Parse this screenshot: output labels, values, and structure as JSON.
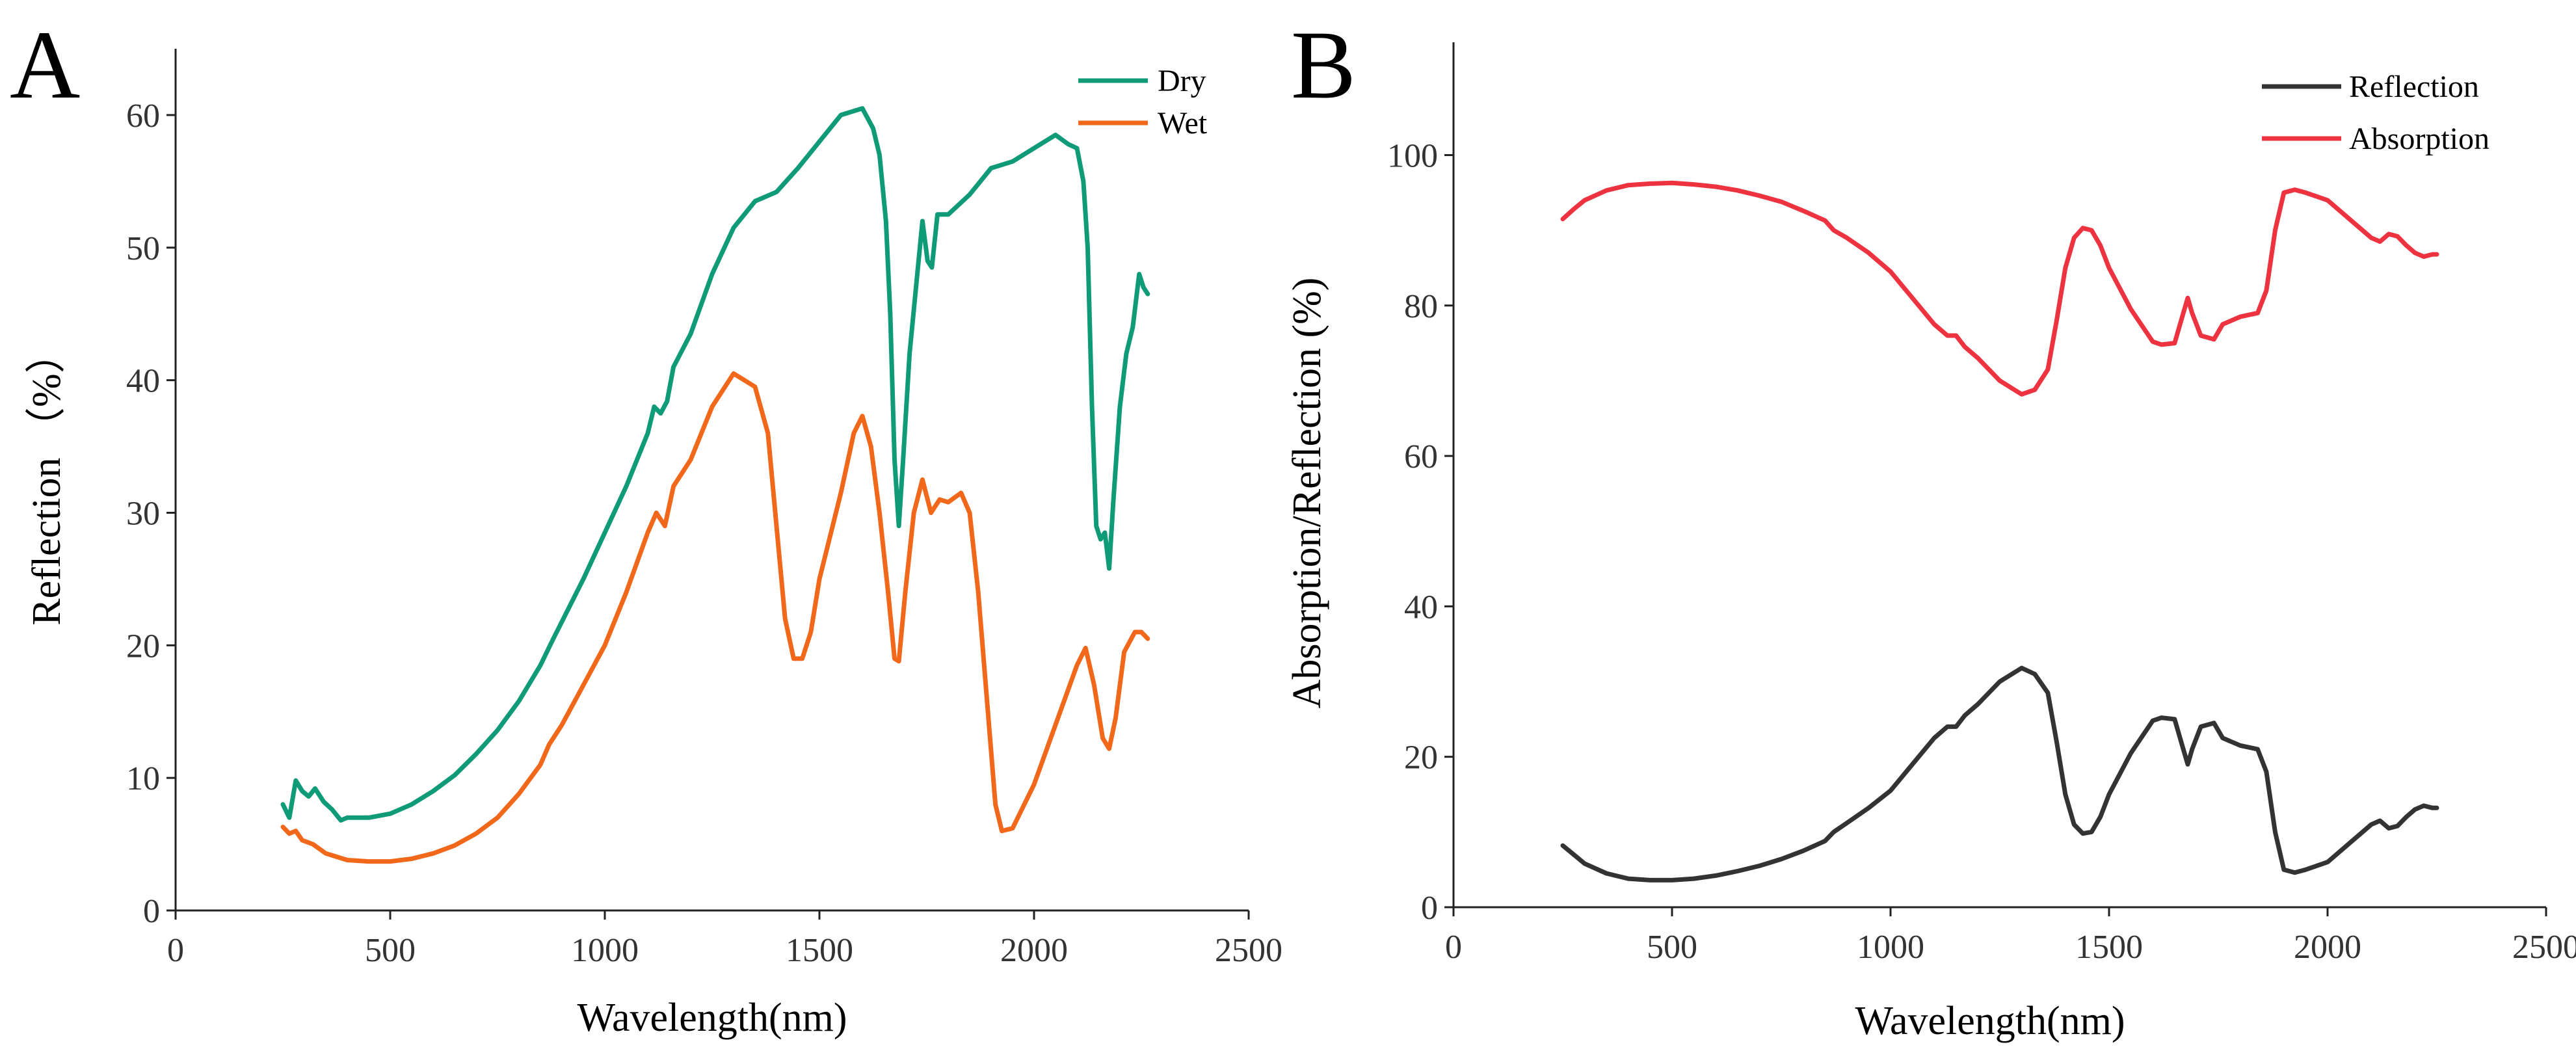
{
  "chart_data": [
    {
      "type": "line",
      "panel_label": "A",
      "xlabel": "Wavelength(nm)",
      "ylabel": "Reflection （%）",
      "xlim": [
        0,
        2500
      ],
      "ylim": [
        0,
        65
      ],
      "xticks": [
        0,
        500,
        1000,
        1500,
        2000,
        2500
      ],
      "yticks": [
        0,
        10,
        20,
        30,
        40,
        50,
        60
      ],
      "legend_position": "top-right",
      "series": [
        {
          "name": "Dry",
          "color": "#0f9a78",
          "points": [
            [
              250,
              8
            ],
            [
              265,
              7
            ],
            [
              280,
              9.8
            ],
            [
              295,
              9
            ],
            [
              310,
              8.6
            ],
            [
              325,
              9.2
            ],
            [
              345,
              8.2
            ],
            [
              365,
              7.6
            ],
            [
              385,
              6.8
            ],
            [
              400,
              7
            ],
            [
              450,
              7
            ],
            [
              500,
              7.3
            ],
            [
              550,
              8
            ],
            [
              600,
              9
            ],
            [
              650,
              10.2
            ],
            [
              700,
              11.8
            ],
            [
              750,
              13.6
            ],
            [
              800,
              15.8
            ],
            [
              850,
              18.5
            ],
            [
              880,
              20.5
            ],
            [
              950,
              25
            ],
            [
              1000,
              28.5
            ],
            [
              1050,
              32
            ],
            [
              1100,
              36
            ],
            [
              1115,
              38
            ],
            [
              1130,
              37.5
            ],
            [
              1145,
              38.4
            ],
            [
              1160,
              41
            ],
            [
              1200,
              43.5
            ],
            [
              1250,
              48
            ],
            [
              1300,
              51.5
            ],
            [
              1350,
              53.5
            ],
            [
              1400,
              54.2
            ],
            [
              1450,
              56
            ],
            [
              1500,
              58
            ],
            [
              1550,
              60
            ],
            [
              1600,
              60.5
            ],
            [
              1625,
              59
            ],
            [
              1640,
              57
            ],
            [
              1655,
              52
            ],
            [
              1665,
              45
            ],
            [
              1675,
              34
            ],
            [
              1685,
              29
            ],
            [
              1695,
              34
            ],
            [
              1710,
              42
            ],
            [
              1725,
              47
            ],
            [
              1740,
              52
            ],
            [
              1752,
              49
            ],
            [
              1762,
              48.5
            ],
            [
              1775,
              52.5
            ],
            [
              1800,
              52.5
            ],
            [
              1850,
              54
            ],
            [
              1900,
              56
            ],
            [
              1950,
              56.5
            ],
            [
              2000,
              57.5
            ],
            [
              2050,
              58.5
            ],
            [
              2080,
              57.8
            ],
            [
              2100,
              57.5
            ],
            [
              2115,
              55
            ],
            [
              2125,
              50
            ],
            [
              2135,
              38
            ],
            [
              2145,
              29
            ],
            [
              2155,
              28
            ],
            [
              2165,
              28.5
            ],
            [
              2175,
              25.8
            ],
            [
              2185,
              31
            ],
            [
              2200,
              38
            ],
            [
              2215,
              42
            ],
            [
              2230,
              44
            ],
            [
              2245,
              48
            ],
            [
              2255,
              47
            ],
            [
              2265,
              46.5
            ]
          ]
        },
        {
          "name": "Wet",
          "color": "#f2681b",
          "points": [
            [
              250,
              6.3
            ],
            [
              265,
              5.8
            ],
            [
              280,
              6
            ],
            [
              295,
              5.3
            ],
            [
              320,
              5
            ],
            [
              350,
              4.3
            ],
            [
              400,
              3.8
            ],
            [
              450,
              3.7
            ],
            [
              500,
              3.7
            ],
            [
              550,
              3.9
            ],
            [
              600,
              4.3
            ],
            [
              650,
              4.9
            ],
            [
              700,
              5.8
            ],
            [
              750,
              7
            ],
            [
              800,
              8.8
            ],
            [
              850,
              11
            ],
            [
              870,
              12.5
            ],
            [
              900,
              14
            ],
            [
              950,
              17
            ],
            [
              1000,
              20
            ],
            [
              1050,
              24
            ],
            [
              1100,
              28.5
            ],
            [
              1120,
              30
            ],
            [
              1140,
              29
            ],
            [
              1160,
              32
            ],
            [
              1200,
              34
            ],
            [
              1250,
              38
            ],
            [
              1300,
              40.5
            ],
            [
              1350,
              39.5
            ],
            [
              1380,
              36
            ],
            [
              1400,
              29
            ],
            [
              1420,
              22
            ],
            [
              1440,
              19
            ],
            [
              1460,
              19
            ],
            [
              1480,
              21
            ],
            [
              1500,
              25
            ],
            [
              1550,
              31.5
            ],
            [
              1580,
              36
            ],
            [
              1600,
              37.3
            ],
            [
              1620,
              35
            ],
            [
              1640,
              30
            ],
            [
              1660,
              24
            ],
            [
              1675,
              19
            ],
            [
              1685,
              18.8
            ],
            [
              1700,
              24
            ],
            [
              1720,
              30
            ],
            [
              1740,
              32.5
            ],
            [
              1760,
              30
            ],
            [
              1780,
              31
            ],
            [
              1800,
              30.8
            ],
            [
              1830,
              31.5
            ],
            [
              1850,
              30
            ],
            [
              1870,
              24
            ],
            [
              1890,
              16
            ],
            [
              1910,
              8
            ],
            [
              1925,
              6
            ],
            [
              1950,
              6.2
            ],
            [
              2000,
              9.5
            ],
            [
              2050,
              14
            ],
            [
              2100,
              18.5
            ],
            [
              2120,
              19.8
            ],
            [
              2140,
              17
            ],
            [
              2160,
              13
            ],
            [
              2175,
              12.2
            ],
            [
              2190,
              14.5
            ],
            [
              2210,
              19.5
            ],
            [
              2235,
              21
            ],
            [
              2250,
              21
            ],
            [
              2265,
              20.5
            ]
          ]
        }
      ]
    },
    {
      "type": "line",
      "panel_label": "B",
      "xlabel": "Wavelength(nm)",
      "ylabel": "Absorption/Reflection (%)",
      "xlim": [
        0,
        2500
      ],
      "ylim": [
        0,
        115
      ],
      "xticks": [
        0,
        500,
        1000,
        1500,
        2000,
        2500
      ],
      "yticks": [
        0,
        20,
        40,
        60,
        80,
        100
      ],
      "legend_position": "top-right",
      "series": [
        {
          "name": "Reflection",
          "color": "#333333",
          "points": [
            [
              250,
              8.2
            ],
            [
              275,
              7
            ],
            [
              300,
              5.8
            ],
            [
              350,
              4.5
            ],
            [
              400,
              3.8
            ],
            [
              450,
              3.6
            ],
            [
              500,
              3.6
            ],
            [
              550,
              3.8
            ],
            [
              600,
              4.2
            ],
            [
              650,
              4.8
            ],
            [
              700,
              5.5
            ],
            [
              750,
              6.4
            ],
            [
              800,
              7.5
            ],
            [
              850,
              8.8
            ],
            [
              870,
              10
            ],
            [
              900,
              11.2
            ],
            [
              950,
              13.2
            ],
            [
              1000,
              15.5
            ],
            [
              1050,
              19
            ],
            [
              1100,
              22.5
            ],
            [
              1130,
              24
            ],
            [
              1150,
              24
            ],
            [
              1170,
              25.5
            ],
            [
              1200,
              27
            ],
            [
              1250,
              30
            ],
            [
              1300,
              31.8
            ],
            [
              1330,
              31
            ],
            [
              1360,
              28.5
            ],
            [
              1380,
              22
            ],
            [
              1400,
              15
            ],
            [
              1420,
              11
            ],
            [
              1440,
              9.8
            ],
            [
              1460,
              10
            ],
            [
              1480,
              12
            ],
            [
              1500,
              15
            ],
            [
              1550,
              20.5
            ],
            [
              1600,
              24.8
            ],
            [
              1620,
              25.2
            ],
            [
              1650,
              25
            ],
            [
              1670,
              21
            ],
            [
              1680,
              19
            ],
            [
              1690,
              21
            ],
            [
              1710,
              24
            ],
            [
              1740,
              24.5
            ],
            [
              1760,
              22.5
            ],
            [
              1800,
              21.5
            ],
            [
              1840,
              21
            ],
            [
              1860,
              18
            ],
            [
              1880,
              10
            ],
            [
              1900,
              5
            ],
            [
              1925,
              4.6
            ],
            [
              1950,
              5
            ],
            [
              2000,
              6
            ],
            [
              2050,
              8.5
            ],
            [
              2100,
              11
            ],
            [
              2120,
              11.5
            ],
            [
              2140,
              10.5
            ],
            [
              2160,
              10.8
            ],
            [
              2180,
              12
            ],
            [
              2200,
              13
            ],
            [
              2220,
              13.5
            ],
            [
              2240,
              13.2
            ],
            [
              2250,
              13.2
            ]
          ]
        },
        {
          "name": "Absorption",
          "color": "#ee3340",
          "points": [
            [
              250,
              91.5
            ],
            [
              275,
              92.8
            ],
            [
              300,
              94
            ],
            [
              350,
              95.3
            ],
            [
              400,
              96
            ],
            [
              450,
              96.2
            ],
            [
              500,
              96.3
            ],
            [
              550,
              96.1
            ],
            [
              600,
              95.8
            ],
            [
              650,
              95.3
            ],
            [
              700,
              94.6
            ],
            [
              750,
              93.8
            ],
            [
              800,
              92.6
            ],
            [
              850,
              91.3
            ],
            [
              870,
              90
            ],
            [
              900,
              89
            ],
            [
              950,
              87
            ],
            [
              1000,
              84.5
            ],
            [
              1050,
              81
            ],
            [
              1100,
              77.5
            ],
            [
              1130,
              76
            ],
            [
              1150,
              76
            ],
            [
              1170,
              74.5
            ],
            [
              1200,
              73
            ],
            [
              1250,
              70
            ],
            [
              1300,
              68.2
            ],
            [
              1330,
              68.8
            ],
            [
              1360,
              71.5
            ],
            [
              1380,
              78
            ],
            [
              1400,
              85
            ],
            [
              1420,
              89
            ],
            [
              1440,
              90.3
            ],
            [
              1460,
              90
            ],
            [
              1480,
              88
            ],
            [
              1500,
              85
            ],
            [
              1550,
              79.5
            ],
            [
              1600,
              75.2
            ],
            [
              1620,
              74.8
            ],
            [
              1650,
              75
            ],
            [
              1670,
              79
            ],
            [
              1680,
              81
            ],
            [
              1690,
              79
            ],
            [
              1710,
              76
            ],
            [
              1740,
              75.5
            ],
            [
              1760,
              77.5
            ],
            [
              1800,
              78.5
            ],
            [
              1840,
              79
            ],
            [
              1860,
              82
            ],
            [
              1880,
              90
            ],
            [
              1900,
              95
            ],
            [
              1925,
              95.4
            ],
            [
              1950,
              95
            ],
            [
              2000,
              94
            ],
            [
              2050,
              91.5
            ],
            [
              2100,
              89
            ],
            [
              2120,
              88.5
            ],
            [
              2140,
              89.5
            ],
            [
              2160,
              89.2
            ],
            [
              2180,
              88
            ],
            [
              2200,
              87
            ],
            [
              2220,
              86.5
            ],
            [
              2240,
              86.8
            ],
            [
              2250,
              86.8
            ]
          ]
        }
      ]
    }
  ]
}
